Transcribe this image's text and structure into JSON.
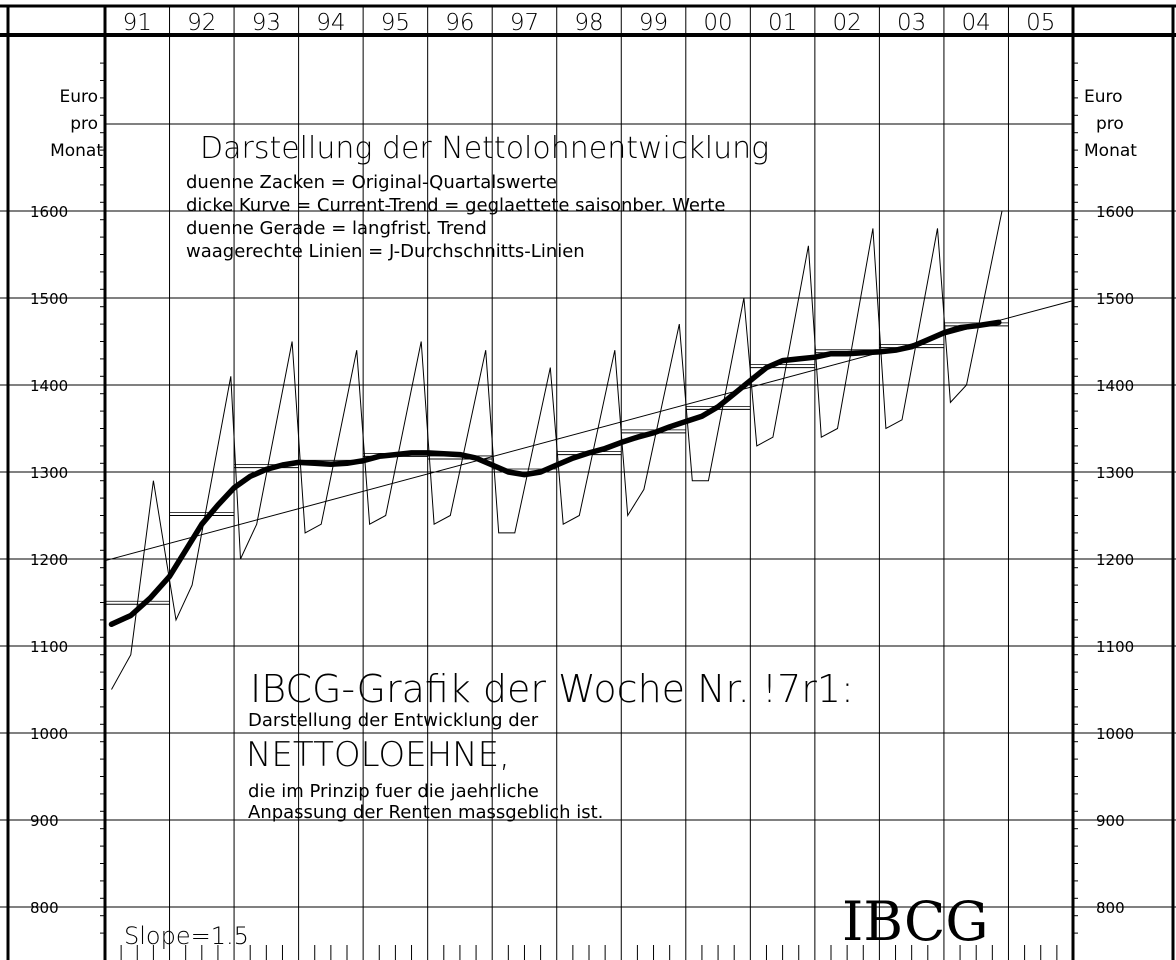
{
  "chart_data": {
    "type": "line",
    "title": "Darstellung der Nettolohnentwicklung",
    "legend_lines": [
      "duenne Zacken = Original-Quartalswerte",
      "dicke Kurve = Current-Trend = geglaettete saisonber. Werte",
      "duenne Gerade = langfrist. Trend",
      "waagerechte Linien = J-Durchschnitts-Linien"
    ],
    "ylabel_left": [
      "Euro",
      "pro",
      "Monat"
    ],
    "ylabel_right": [
      "Euro",
      "pro",
      "Monat"
    ],
    "year_labels": [
      "91",
      "92",
      "93",
      "94",
      "95",
      "96",
      "97",
      "98",
      "99",
      "00",
      "01",
      "02",
      "03",
      "04",
      "05"
    ],
    "x_start_year": 1991,
    "xlim": [
      1991,
      2006
    ],
    "ylim": [
      770,
      1770
    ],
    "yticks": [
      800,
      900,
      1000,
      1100,
      1200,
      1300,
      1400,
      1500,
      1600
    ],
    "grid": true,
    "series": [
      {
        "role": "quarterly",
        "x": [
          1991.1,
          1991.4,
          1991.75,
          1992.1,
          1992.35,
          1992.95,
          1993.1,
          1993.35,
          1993.9,
          1994.1,
          1994.35,
          1994.9,
          1995.1,
          1995.35,
          1995.9,
          1996.1,
          1996.35,
          1996.9,
          1997.1,
          1997.35,
          1997.9,
          1998.1,
          1998.35,
          1998.9,
          1999.1,
          1999.35,
          1999.9,
          2000.1,
          2000.35,
          2000.9,
          2001.1,
          2001.35,
          2001.9,
          2002.1,
          2002.35,
          2002.9,
          2003.1,
          2003.35,
          2003.9,
          2004.1,
          2004.35,
          2004.9
        ],
        "values": [
          1050,
          1090,
          1290,
          1130,
          1170,
          1410,
          1200,
          1240,
          1450,
          1230,
          1240,
          1440,
          1240,
          1250,
          1450,
          1240,
          1250,
          1440,
          1230,
          1230,
          1420,
          1240,
          1250,
          1440,
          1250,
          1280,
          1470,
          1290,
          1290,
          1500,
          1330,
          1340,
          1560,
          1340,
          1350,
          1580,
          1350,
          1360,
          1580,
          1380,
          1400,
          1600
        ]
      },
      {
        "role": "current-trend",
        "x": [
          1991.1,
          1991.4,
          1991.7,
          1992.0,
          1992.25,
          1992.5,
          1992.75,
          1993.0,
          1993.25,
          1993.5,
          1993.75,
          1994.0,
          1994.25,
          1994.5,
          1994.75,
          1995.0,
          1995.25,
          1995.5,
          1995.75,
          1996.0,
          1996.25,
          1996.5,
          1996.75,
          1997.0,
          1997.25,
          1997.5,
          1997.75,
          1998.0,
          1998.25,
          1998.5,
          1998.75,
          1999.0,
          1999.25,
          1999.5,
          1999.75,
          2000.0,
          2000.25,
          2000.5,
          2000.75,
          2001.0,
          2001.25,
          2001.5,
          2001.75,
          2002.0,
          2002.25,
          2002.5,
          2002.75,
          2003.0,
          2003.25,
          2003.5,
          2003.75,
          2004.0,
          2004.25,
          2004.5,
          2004.85
        ],
        "values": [
          1125,
          1135,
          1155,
          1180,
          1210,
          1240,
          1262,
          1282,
          1295,
          1303,
          1308,
          1311,
          1310,
          1309,
          1310,
          1313,
          1318,
          1320,
          1322,
          1322,
          1321,
          1320,
          1316,
          1308,
          1300,
          1297,
          1300,
          1308,
          1316,
          1322,
          1327,
          1334,
          1340,
          1345,
          1352,
          1358,
          1364,
          1375,
          1390,
          1405,
          1420,
          1428,
          1430,
          1432,
          1436,
          1436,
          1437,
          1438,
          1440,
          1444,
          1452,
          1460,
          1466,
          1468,
          1472
        ]
      },
      {
        "role": "long-term-trend",
        "x": [
          1991,
          2006
        ],
        "values": [
          1198,
          1497
        ]
      },
      {
        "role": "annual-average",
        "x_start": [
          1991,
          1992,
          1993,
          1994,
          1995,
          1996,
          1997,
          1998,
          1999,
          2000,
          2001,
          2002,
          2003,
          2004
        ],
        "values": [
          1148,
          1250,
          1305,
          1310,
          1318,
          1315,
          1300,
          1320,
          1345,
          1372,
          1420,
          1437,
          1443,
          1468
        ]
      }
    ],
    "annotations": {
      "headline": "IBCG-Grafik der Woche Nr. !7r1:",
      "sub1": "Darstellung der Entwicklung der",
      "big": "NETTOLOEHNE,",
      "sub2": "die im Prinzip fuer die jaehrliche",
      "sub3": "Anpassung der Renten massgeblich ist.",
      "slope": "Slope=1.5",
      "logo": "IBCG"
    }
  }
}
